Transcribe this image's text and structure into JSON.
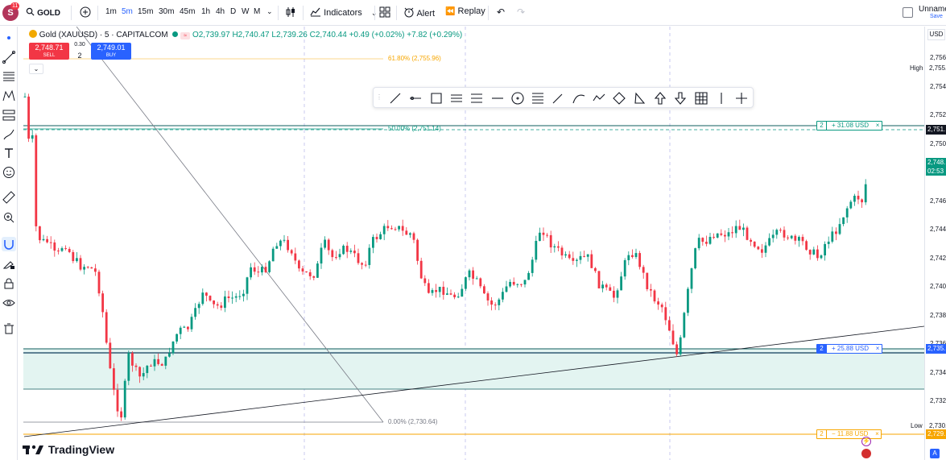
{
  "header": {
    "avatar_letter": "S",
    "notification_count": "11",
    "symbol": "GOLD",
    "timeframes": [
      "1m",
      "5m",
      "15m",
      "30m",
      "45m",
      "1h",
      "4h",
      "D",
      "W",
      "M"
    ],
    "active_timeframe": "5m",
    "indicators_label": "Indicators",
    "alert_label": "Alert",
    "replay_label": "Replay",
    "layout_name": "Unname",
    "save_label": "Save"
  },
  "legend": {
    "title": "Gold (XAUUSD) · 5 · CAPITALCOM",
    "ohlc": "O2,739.97 H2,740.47 L2,739.26 C2,740.44 +0.49 (+0.02%) +7.82 (+0.29%)"
  },
  "trade": {
    "sell_price": "2,748.71",
    "sell_label": "SELL",
    "spread": "0.30",
    "qty": "2",
    "buy_price": "2,749.01",
    "buy_label": "BUY"
  },
  "fib": {
    "level_618": "61.80% (2,755.96)",
    "level_50": "50.00% (2,751.14)",
    "level_0": "0.00% (2,730.64)"
  },
  "positions": [
    {
      "qty": "2",
      "pnl": "+ 31.08 USD",
      "color": "#089981"
    },
    {
      "qty": "2",
      "pnl": "+ 25.88 USD",
      "color": "#2962ff"
    },
    {
      "qty": "2",
      "pnl": "− 11.88 USD",
      "color": "#f7a600"
    }
  ],
  "axis": {
    "currency": "USD",
    "ticks": [
      "2,756.",
      "2,754.",
      "2,752.",
      "2,750.",
      "2,748.",
      "2,746.",
      "2,744.",
      "2,742.",
      "2,740.",
      "2,738.",
      "2,736.",
      "2,734.",
      "2,732.",
      "2,730."
    ],
    "high_label": "High",
    "high_value": "2,755.",
    "low_label": "Low",
    "low_value": "2,730.",
    "tag_tp": "2,751.",
    "tag_last": "2,748.",
    "tag_countdown": "02:53",
    "tag_entry": "2,735.",
    "tag_sl": "2,729."
  },
  "brand": "TradingView",
  "icons": [
    "search-icon",
    "add-symbol-icon",
    "chart-type-icon",
    "indicators-icon",
    "templates-icon",
    "alert-icon",
    "replay-icon",
    "undo-icon",
    "redo-icon",
    "crosshair-icon",
    "trendline-icon",
    "fib-icon",
    "pattern-icon",
    "measure-icon",
    "brush-icon",
    "text-icon",
    "emoji-icon",
    "ruler-icon",
    "zoom-icon",
    "magnet-icon",
    "lock-draw-icon",
    "lock-icon",
    "eye-icon",
    "trash-icon"
  ],
  "colors": {
    "up": "#089981",
    "down": "#f23645",
    "accent": "#2962ff",
    "fib618": "#f7a600"
  }
}
